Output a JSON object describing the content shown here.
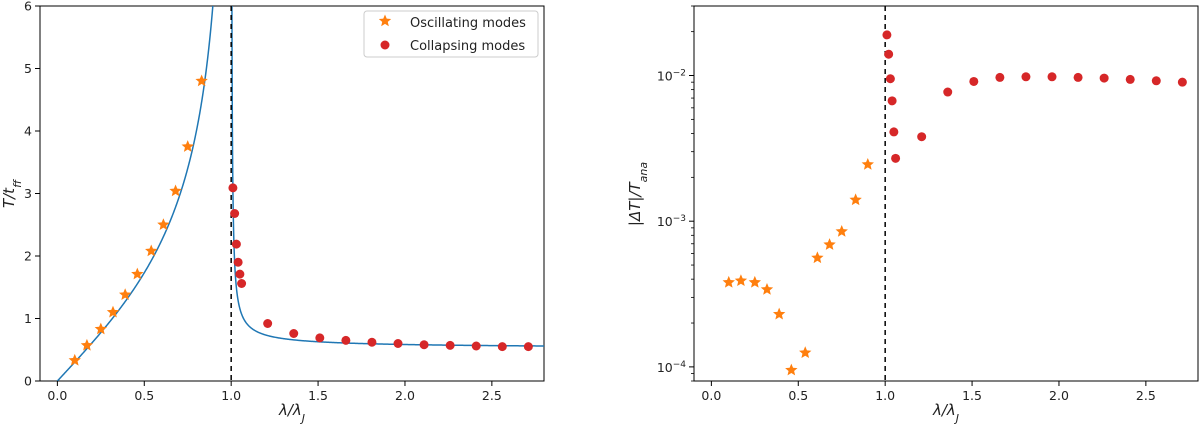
{
  "chart_data": [
    {
      "type": "scatter",
      "scale": "linear",
      "xlabel": "λ/λ_J",
      "ylabel": "T/t_ff",
      "xlim": [
        -0.1,
        2.8
      ],
      "ylim": [
        0,
        6
      ],
      "xticks": [
        "0.0",
        "0.5",
        "1.0",
        "1.5",
        "2.0",
        "2.5"
      ],
      "yticks": [
        "0",
        "1",
        "2",
        "3",
        "4",
        "5",
        "6"
      ],
      "vline": 1.0,
      "legend": {
        "position": "top-right",
        "entries": [
          "Oscillating modes",
          "Collapsing modes"
        ]
      },
      "colors": {
        "oscillating": "#ff7f0e",
        "collapsing": "#d62728",
        "curve": "#1f77b4"
      },
      "series": [
        {
          "name": "Oscillating modes",
          "marker": "star",
          "x": [
            0.1,
            0.17,
            0.25,
            0.32,
            0.39,
            0.46,
            0.54,
            0.61,
            0.68,
            0.75,
            0.83
          ],
          "y": [
            0.33,
            0.57,
            0.83,
            1.1,
            1.38,
            1.71,
            2.08,
            2.5,
            3.04,
            3.75,
            4.8
          ]
        },
        {
          "name": "Collapsing modes",
          "marker": "circle",
          "x": [
            1.01,
            1.02,
            1.03,
            1.04,
            1.05,
            1.06,
            1.21,
            1.36,
            1.51,
            1.66,
            1.81,
            1.96,
            2.11,
            2.26,
            2.41,
            2.56,
            2.71
          ],
          "y": [
            3.09,
            2.68,
            2.19,
            1.9,
            1.71,
            1.56,
            0.92,
            0.76,
            0.69,
            0.65,
            0.62,
            0.6,
            0.58,
            0.57,
            0.56,
            0.55,
            0.55
          ]
        }
      ],
      "curve": {
        "name": "analytic period",
        "pole": 1.0
      }
    },
    {
      "type": "scatter",
      "scale": "log",
      "xlabel": "λ/λ_J",
      "ylabel": "|ΔT|/T_ana",
      "xlim": [
        -0.1,
        2.8
      ],
      "ylim": [
        8e-05,
        0.03
      ],
      "xticks": [
        "0.0",
        "0.5",
        "1.0",
        "1.5",
        "2.0",
        "2.5"
      ],
      "yticks": [
        {
          "base": "10",
          "exp": "−4",
          "value": 0.0001
        },
        {
          "base": "10",
          "exp": "−3",
          "value": 0.001
        },
        {
          "base": "10",
          "exp": "−2",
          "value": 0.01
        }
      ],
      "vline": 1.0,
      "colors": {
        "oscillating": "#ff7f0e",
        "collapsing": "#d62728"
      },
      "series": [
        {
          "name": "Oscillating modes",
          "marker": "star",
          "x": [
            0.1,
            0.17,
            0.25,
            0.32,
            0.39,
            0.46,
            0.54,
            0.61,
            0.68,
            0.75,
            0.83,
            0.9
          ],
          "y": [
            0.00038,
            0.00039,
            0.00038,
            0.00034,
            0.00023,
            9.5e-05,
            0.000125,
            0.00056,
            0.00069,
            0.00085,
            0.0014,
            0.00245
          ]
        },
        {
          "name": "Collapsing modes",
          "marker": "circle",
          "x": [
            1.01,
            1.02,
            1.03,
            1.04,
            1.05,
            1.06,
            1.21,
            1.36,
            1.51,
            1.66,
            1.81,
            1.96,
            2.11,
            2.26,
            2.41,
            2.56,
            2.71
          ],
          "y": [
            0.019,
            0.014,
            0.0095,
            0.0067,
            0.0041,
            0.0027,
            0.0038,
            0.0077,
            0.0091,
            0.0097,
            0.0098,
            0.0098,
            0.0097,
            0.0096,
            0.0094,
            0.0092,
            0.009
          ]
        }
      ]
    }
  ]
}
